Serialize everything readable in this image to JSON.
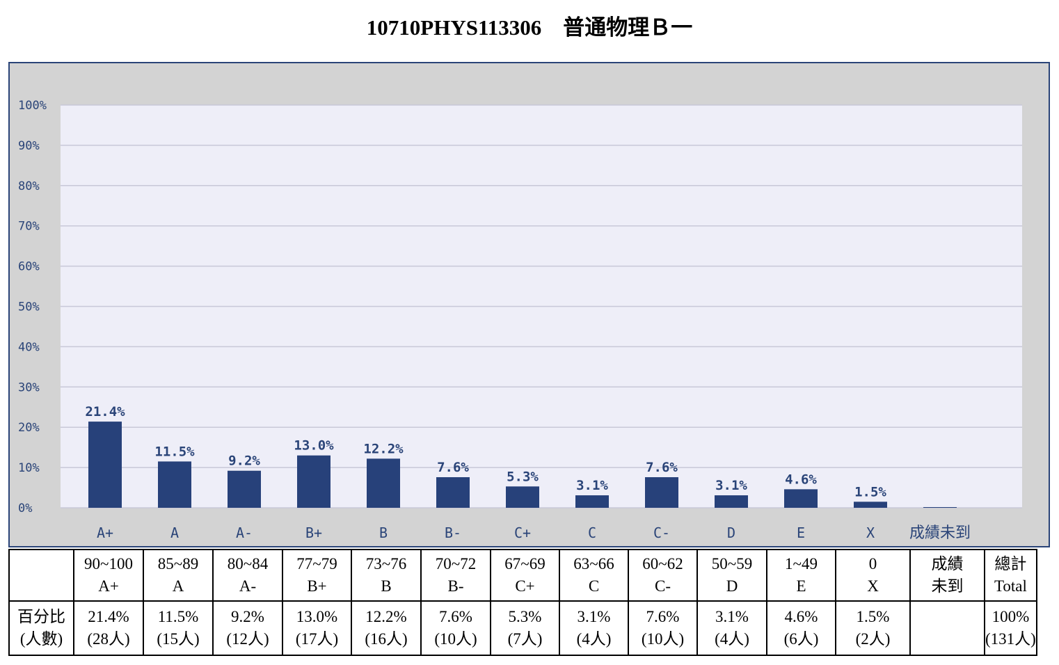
{
  "title": "10710PHYS113306　普通物理Ｂ一",
  "colors": {
    "bar": "#27417a",
    "plot_bg": "#eeeef8",
    "frame_bg": "#d3d3d3",
    "frame_border": "#2a4478",
    "gridline": "#c8c8d8",
    "label": "#2a4478"
  },
  "chart_data": {
    "type": "bar",
    "title": "",
    "xlabel": "",
    "ylabel": "",
    "ylim": [
      0,
      100
    ],
    "yticks": [
      "100%",
      "90%",
      "80%",
      "70%",
      "60%",
      "50%",
      "40%",
      "30%",
      "20%",
      "10%",
      "0%"
    ],
    "grid": true,
    "categories": [
      "A+",
      "A",
      "A-",
      "B+",
      "B",
      "B-",
      "C+",
      "C",
      "C-",
      "D",
      "E",
      "X",
      "成績未到"
    ],
    "values": [
      21.4,
      11.5,
      9.2,
      13.0,
      12.2,
      7.6,
      5.3,
      3.1,
      7.6,
      3.1,
      4.6,
      1.5,
      0
    ],
    "data_labels": [
      "21.4%",
      "11.5%",
      "9.2%",
      "13.0%",
      "12.2%",
      "7.6%",
      "5.3%",
      "3.1%",
      "7.6%",
      "3.1%",
      "4.6%",
      "1.5%",
      ""
    ]
  },
  "table": {
    "row_header": [
      "百分比",
      "(人數)"
    ],
    "columns": [
      {
        "range": "90~100",
        "grade": "A+",
        "pct": "21.4%",
        "count": "(28人)"
      },
      {
        "range": "85~89",
        "grade": "A",
        "pct": "11.5%",
        "count": "(15人)"
      },
      {
        "range": "80~84",
        "grade": "A-",
        "pct": "9.2%",
        "count": "(12人)"
      },
      {
        "range": "77~79",
        "grade": "B+",
        "pct": "13.0%",
        "count": "(17人)"
      },
      {
        "range": "73~76",
        "grade": "B",
        "pct": "12.2%",
        "count": "(16人)"
      },
      {
        "range": "70~72",
        "grade": "B-",
        "pct": "7.6%",
        "count": "(10人)"
      },
      {
        "range": "67~69",
        "grade": "C+",
        "pct": "5.3%",
        "count": "(7人)"
      },
      {
        "range": "63~66",
        "grade": "C",
        "pct": "3.1%",
        "count": "(4人)"
      },
      {
        "range": "60~62",
        "grade": "C-",
        "pct": "7.6%",
        "count": "(10人)"
      },
      {
        "range": "50~59",
        "grade": "D",
        "pct": "3.1%",
        "count": "(4人)"
      },
      {
        "range": "1~49",
        "grade": "E",
        "pct": "4.6%",
        "count": "(6人)"
      },
      {
        "range": "0",
        "grade": "X",
        "pct": "1.5%",
        "count": "(2人)"
      },
      {
        "range": "成績",
        "grade": "未到",
        "pct": "",
        "count": ""
      },
      {
        "range": "總計",
        "grade": "Total",
        "pct": "100%",
        "count": "(131人)"
      }
    ]
  }
}
